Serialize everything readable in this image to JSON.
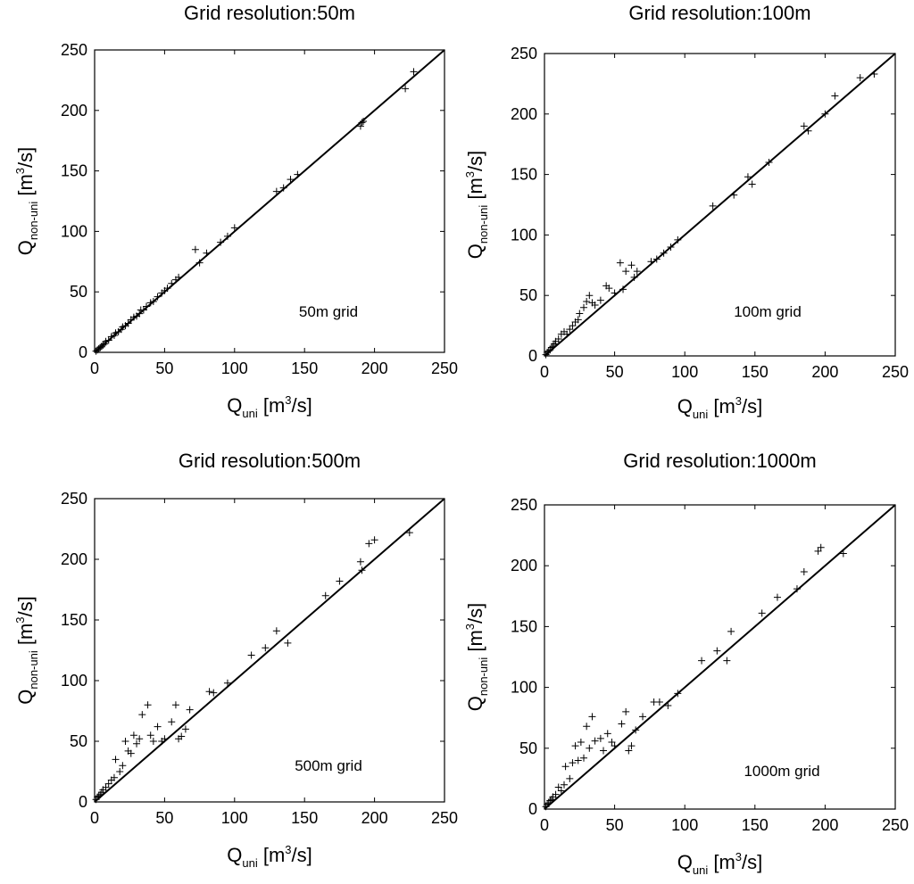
{
  "chart_data": [
    {
      "type": "scatter",
      "title": "Grid resolution:50m",
      "xlabel": {
        "main": "Q",
        "sub": "uni",
        "unit": "[m",
        "sup": "3",
        "tail": "/s]"
      },
      "ylabel": {
        "main": "Q",
        "sub": "non-uni",
        "unit": "[m",
        "sup": "3",
        "tail": "/s]"
      },
      "xlim": [
        0,
        250
      ],
      "ylim": [
        0,
        250
      ],
      "xticks": [
        "0",
        "50",
        "100",
        "150",
        "200",
        "250"
      ],
      "yticks": [
        "0",
        "50",
        "100",
        "150",
        "200",
        "250"
      ],
      "annotation": "50m grid",
      "reference_line": {
        "name": "1:1 line",
        "from": [
          0,
          0
        ],
        "to": [
          250,
          250
        ]
      },
      "marker": "+",
      "points": [
        [
          1,
          1
        ],
        [
          2,
          2
        ],
        [
          3,
          3
        ],
        [
          4,
          4
        ],
        [
          5,
          5
        ],
        [
          6,
          6
        ],
        [
          7,
          7
        ],
        [
          8,
          9
        ],
        [
          10,
          10
        ],
        [
          12,
          13
        ],
        [
          14,
          14
        ],
        [
          15,
          16
        ],
        [
          17,
          17
        ],
        [
          19,
          19
        ],
        [
          20,
          21
        ],
        [
          22,
          22
        ],
        [
          24,
          24
        ],
        [
          26,
          27
        ],
        [
          28,
          29
        ],
        [
          30,
          30
        ],
        [
          32,
          32
        ],
        [
          33,
          35
        ],
        [
          35,
          35
        ],
        [
          37,
          38
        ],
        [
          40,
          41
        ],
        [
          42,
          42
        ],
        [
          45,
          46
        ],
        [
          48,
          49
        ],
        [
          50,
          51
        ],
        [
          52,
          53
        ],
        [
          55,
          57
        ],
        [
          58,
          60
        ],
        [
          60,
          62
        ],
        [
          72,
          85
        ],
        [
          75,
          74
        ],
        [
          80,
          82
        ],
        [
          90,
          91
        ],
        [
          95,
          96
        ],
        [
          100,
          103
        ],
        [
          130,
          133
        ],
        [
          135,
          136
        ],
        [
          140,
          143
        ],
        [
          145,
          147
        ],
        [
          190,
          187
        ],
        [
          191,
          190
        ],
        [
          192,
          191
        ],
        [
          222,
          218
        ],
        [
          228,
          232
        ]
      ]
    },
    {
      "type": "scatter",
      "title": "Grid resolution:100m",
      "xlabel": {
        "main": "Q",
        "sub": "uni",
        "unit": "[m",
        "sup": "3",
        "tail": "/s]"
      },
      "ylabel": {
        "main": "Q",
        "sub": "non-uni",
        "unit": "[m",
        "sup": "3",
        "tail": "/s]"
      },
      "xlim": [
        0,
        250
      ],
      "ylim": [
        0,
        250
      ],
      "xticks": [
        "0",
        "50",
        "100",
        "150",
        "200",
        "250"
      ],
      "yticks": [
        "0",
        "50",
        "100",
        "150",
        "200",
        "250"
      ],
      "annotation": "100m grid",
      "reference_line": {
        "name": "1:1 line",
        "from": [
          0,
          0
        ],
        "to": [
          250,
          250
        ]
      },
      "marker": "+",
      "points": [
        [
          1,
          1
        ],
        [
          2,
          3
        ],
        [
          3,
          4
        ],
        [
          4,
          5
        ],
        [
          5,
          7
        ],
        [
          6,
          8
        ],
        [
          7,
          10
        ],
        [
          8,
          12
        ],
        [
          10,
          14
        ],
        [
          12,
          18
        ],
        [
          14,
          20
        ],
        [
          16,
          18
        ],
        [
          18,
          22
        ],
        [
          20,
          25
        ],
        [
          22,
          28
        ],
        [
          24,
          30
        ],
        [
          25,
          35
        ],
        [
          28,
          40
        ],
        [
          30,
          45
        ],
        [
          32,
          50
        ],
        [
          34,
          44
        ],
        [
          36,
          42
        ],
        [
          40,
          46
        ],
        [
          44,
          58
        ],
        [
          46,
          56
        ],
        [
          50,
          52
        ],
        [
          54,
          77
        ],
        [
          56,
          55
        ],
        [
          58,
          70
        ],
        [
          62,
          75
        ],
        [
          64,
          65
        ],
        [
          66,
          70
        ],
        [
          76,
          78
        ],
        [
          80,
          80
        ],
        [
          85,
          85
        ],
        [
          90,
          90
        ],
        [
          95,
          96
        ],
        [
          120,
          124
        ],
        [
          135,
          133
        ],
        [
          145,
          148
        ],
        [
          148,
          142
        ],
        [
          160,
          160
        ],
        [
          185,
          190
        ],
        [
          188,
          186
        ],
        [
          200,
          200
        ],
        [
          207,
          215
        ],
        [
          225,
          230
        ],
        [
          235,
          233
        ]
      ]
    },
    {
      "type": "scatter",
      "title": "Grid resolution:500m",
      "xlabel": {
        "main": "Q",
        "sub": "uni",
        "unit": "[m",
        "sup": "3",
        "tail": "/s]"
      },
      "ylabel": {
        "main": "Q",
        "sub": "non-uni",
        "unit": "[m",
        "sup": "3",
        "tail": "/s]"
      },
      "xlim": [
        0,
        250
      ],
      "ylim": [
        0,
        250
      ],
      "xticks": [
        "0",
        "50",
        "100",
        "150",
        "200",
        "250"
      ],
      "yticks": [
        "0",
        "50",
        "100",
        "150",
        "200",
        "250"
      ],
      "annotation": "500m grid",
      "reference_line": {
        "name": "1:1 line",
        "from": [
          0,
          0
        ],
        "to": [
          250,
          250
        ]
      },
      "marker": "+",
      "points": [
        [
          1,
          2
        ],
        [
          2,
          4
        ],
        [
          3,
          5
        ],
        [
          4,
          6
        ],
        [
          5,
          8
        ],
        [
          6,
          10
        ],
        [
          8,
          12
        ],
        [
          10,
          15
        ],
        [
          12,
          18
        ],
        [
          14,
          20
        ],
        [
          15,
          35
        ],
        [
          18,
          25
        ],
        [
          20,
          30
        ],
        [
          22,
          50
        ],
        [
          24,
          42
        ],
        [
          26,
          40
        ],
        [
          28,
          55
        ],
        [
          30,
          48
        ],
        [
          32,
          52
        ],
        [
          34,
          72
        ],
        [
          38,
          80
        ],
        [
          40,
          55
        ],
        [
          42,
          50
        ],
        [
          45,
          62
        ],
        [
          48,
          50
        ],
        [
          50,
          52
        ],
        [
          55,
          66
        ],
        [
          58,
          80
        ],
        [
          60,
          52
        ],
        [
          62,
          54
        ],
        [
          65,
          60
        ],
        [
          68,
          76
        ],
        [
          82,
          91
        ],
        [
          85,
          90
        ],
        [
          95,
          98
        ],
        [
          112,
          121
        ],
        [
          122,
          127
        ],
        [
          130,
          141
        ],
        [
          138,
          131
        ],
        [
          165,
          170
        ],
        [
          175,
          182
        ],
        [
          190,
          198
        ],
        [
          191,
          191
        ],
        [
          196,
          213
        ],
        [
          200,
          216
        ],
        [
          225,
          222
        ]
      ]
    },
    {
      "type": "scatter",
      "title": "Grid resolution:1000m",
      "xlabel": {
        "main": "Q",
        "sub": "uni",
        "unit": "[m",
        "sup": "3",
        "tail": "/s]"
      },
      "ylabel": {
        "main": "Q",
        "sub": "non-uni",
        "unit": "[m",
        "sup": "3",
        "tail": "/s]"
      },
      "xlim": [
        0,
        250
      ],
      "ylim": [
        0,
        250
      ],
      "xticks": [
        "0",
        "50",
        "100",
        "150",
        "200",
        "250"
      ],
      "yticks": [
        "0",
        "50",
        "100",
        "150",
        "200",
        "250"
      ],
      "annotation": "1000m grid",
      "reference_line": {
        "name": "1:1 line",
        "from": [
          0,
          0
        ],
        "to": [
          250,
          250
        ]
      },
      "marker": "+",
      "points": [
        [
          1,
          2
        ],
        [
          2,
          4
        ],
        [
          3,
          5
        ],
        [
          4,
          7
        ],
        [
          5,
          8
        ],
        [
          6,
          10
        ],
        [
          8,
          12
        ],
        [
          10,
          18
        ],
        [
          12,
          15
        ],
        [
          14,
          20
        ],
        [
          15,
          35
        ],
        [
          18,
          25
        ],
        [
          20,
          38
        ],
        [
          22,
          52
        ],
        [
          24,
          40
        ],
        [
          26,
          55
        ],
        [
          28,
          42
        ],
        [
          30,
          68
        ],
        [
          32,
          50
        ],
        [
          34,
          76
        ],
        [
          36,
          56
        ],
        [
          40,
          58
        ],
        [
          42,
          48
        ],
        [
          45,
          62
        ],
        [
          48,
          55
        ],
        [
          50,
          52
        ],
        [
          55,
          70
        ],
        [
          58,
          80
        ],
        [
          60,
          48
        ],
        [
          62,
          52
        ],
        [
          65,
          65
        ],
        [
          70,
          76
        ],
        [
          78,
          88
        ],
        [
          82,
          88
        ],
        [
          88,
          85
        ],
        [
          95,
          95
        ],
        [
          112,
          122
        ],
        [
          123,
          130
        ],
        [
          130,
          122
        ],
        [
          133,
          146
        ],
        [
          155,
          161
        ],
        [
          166,
          174
        ],
        [
          180,
          181
        ],
        [
          185,
          195
        ],
        [
          195,
          212
        ],
        [
          197,
          215
        ],
        [
          213,
          210
        ]
      ]
    }
  ]
}
